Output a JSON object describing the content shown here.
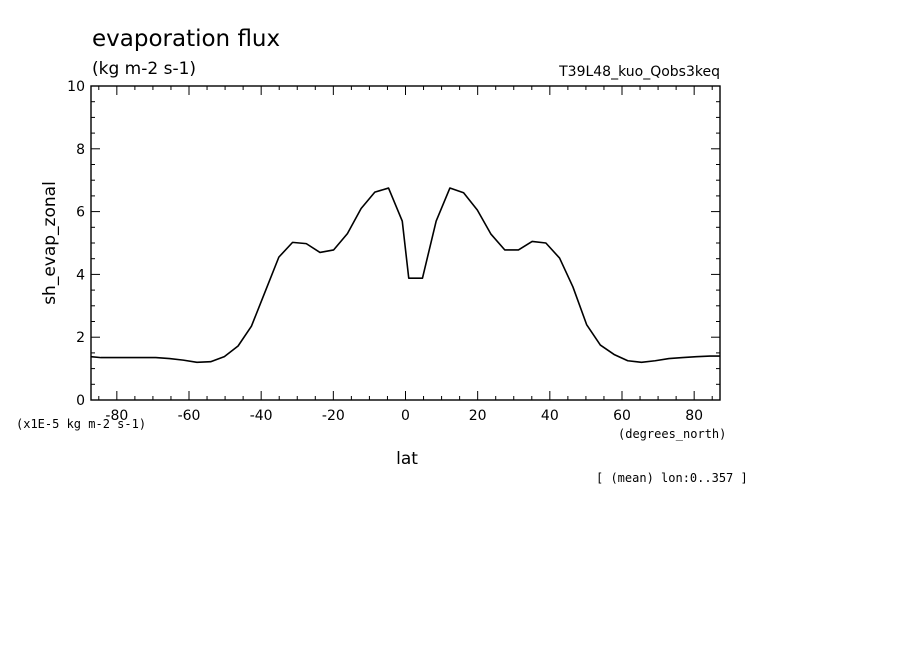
{
  "chart_data": {
    "type": "line",
    "title": "evaporation flux",
    "subtitle": "(kg m-2 s-1)",
    "run_label": "T39L48_kuo_Qobs3keq",
    "xlabel": "lat",
    "xunits": "(degrees_north)",
    "ylabel": "sh_evap_zonal",
    "yscale_note": "(x1E-5 kg m-2 s-1)",
    "footnote": "[ (mean) lon:0..357 ]",
    "xlim": [
      -87.16,
      87.16
    ],
    "ylim": [
      0,
      10
    ],
    "x_ticks": [
      -80,
      -60,
      -40,
      -20,
      0,
      20,
      40,
      60,
      80
    ],
    "x_tick_labels": [
      "-80",
      "-60",
      "-40",
      "-20",
      "0",
      "20",
      "40",
      "60",
      "80"
    ],
    "y_ticks": [
      0,
      2,
      4,
      6,
      8,
      10
    ],
    "y_tick_labels": [
      "0",
      "2",
      "4",
      "6",
      "8",
      "10"
    ],
    "grid": false,
    "series": [
      {
        "x": [
          -87.16,
          -84.4,
          -80.6,
          -76.8,
          -73.0,
          -69.2,
          -65.4,
          -61.6,
          -57.8,
          -54.0,
          -50.2,
          -46.4,
          -42.7,
          -38.9,
          -35.1,
          -31.3,
          -27.5,
          -23.7,
          -19.9,
          -16.1,
          -12.3,
          -8.5,
          -4.7,
          -0.9,
          0.9,
          4.7,
          8.5,
          12.3,
          16.1,
          19.9,
          23.7,
          27.5,
          31.3,
          35.1,
          38.9,
          42.7,
          46.4,
          50.2,
          54.0,
          57.8,
          61.6,
          65.4,
          69.2,
          73.0,
          76.8,
          80.6,
          84.4,
          87.16
        ],
        "y": [
          1.38,
          1.35,
          1.35,
          1.35,
          1.35,
          1.35,
          1.32,
          1.27,
          1.2,
          1.22,
          1.38,
          1.72,
          2.35,
          3.45,
          4.55,
          5.02,
          4.98,
          4.7,
          4.78,
          5.3,
          6.1,
          6.62,
          6.75,
          5.7,
          3.88,
          3.88,
          5.7,
          6.75,
          6.6,
          6.05,
          5.28,
          4.78,
          4.78,
          5.05,
          5.0,
          4.52,
          3.6,
          2.4,
          1.75,
          1.45,
          1.25,
          1.2,
          1.25,
          1.32,
          1.35,
          1.38,
          1.4,
          1.4
        ]
      }
    ]
  }
}
